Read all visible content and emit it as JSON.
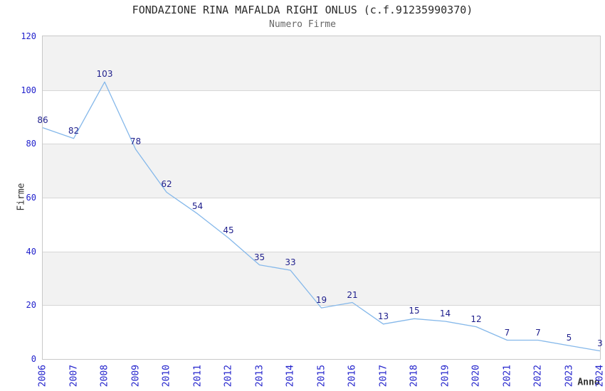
{
  "chart_data": {
    "type": "line",
    "title": "FONDAZIONE RINA MAFALDA RIGHI ONLUS (c.f.91235990370)",
    "subtitle": "Numero Firme",
    "xlabel": "Anno",
    "ylabel": "Firme",
    "x": [
      "2006",
      "2007",
      "2008",
      "2009",
      "2010",
      "2011",
      "2012",
      "2013",
      "2014",
      "2015",
      "2016",
      "2017",
      "2018",
      "2019",
      "2020",
      "2021",
      "2022",
      "2023",
      "2024"
    ],
    "values": [
      86,
      82,
      103,
      78,
      62,
      54,
      45,
      35,
      33,
      19,
      21,
      13,
      15,
      14,
      12,
      7,
      7,
      5,
      3
    ],
    "point_labels_visible": true,
    "ylim": [
      0,
      120
    ],
    "ytick_step": 20,
    "yticks": [
      120,
      100,
      80,
      60,
      40,
      20,
      0
    ],
    "legend": "none",
    "grid": "alternating horizontal bands every 20 units",
    "colors": {
      "line": "#85b8ea",
      "point_label": "#1e1e8c",
      "tick_label": "#2222cc",
      "band_gray": "#f2f2f2",
      "band_white": "#ffffff",
      "gridline": "#d6d6d6",
      "plot_border": "#c8c8c8",
      "title": "#2b2b2b",
      "subtitle": "#666666",
      "axis_title": "#333333"
    }
  }
}
